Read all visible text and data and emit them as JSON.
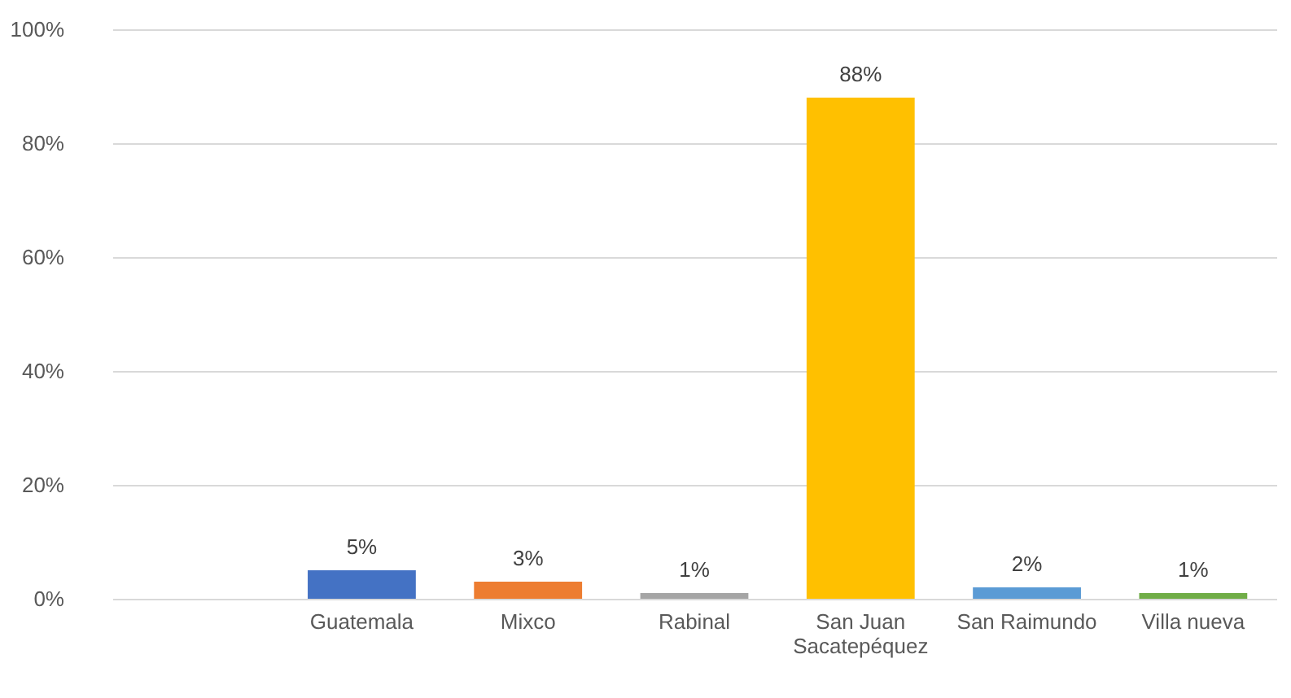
{
  "chart_data": {
    "type": "bar",
    "categories": [
      null,
      "Guatemala",
      "Mixco",
      "Rabinal",
      "San Juan Sacatepéquez",
      "San Raimundo",
      "Villa nueva"
    ],
    "values": [
      null,
      5,
      3,
      1,
      88,
      2,
      1
    ],
    "colors": [
      "#4472c4",
      "#4472c4",
      "#ed7d31",
      "#a5a5a5",
      "#ffc000",
      "#5b9bd5",
      "#70ad47"
    ],
    "value_labels": [
      null,
      "5%",
      "3%",
      "1%",
      "88%",
      "2%",
      "1%"
    ],
    "ylim": [
      0,
      100
    ],
    "yticks": [
      {
        "value": 0,
        "label": "0%"
      },
      {
        "value": 20,
        "label": "20%"
      },
      {
        "value": 40,
        "label": "40%"
      },
      {
        "value": 60,
        "label": "60%"
      },
      {
        "value": 80,
        "label": "80%"
      },
      {
        "value": 100,
        "label": "100%"
      }
    ],
    "grid": "y"
  }
}
